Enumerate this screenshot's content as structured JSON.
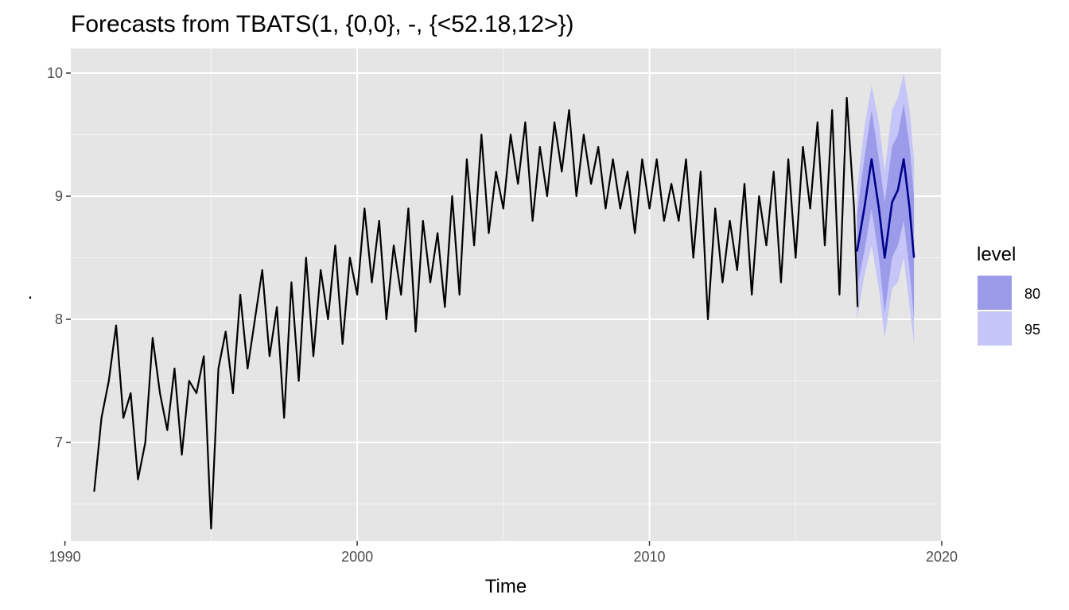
{
  "chart_data": {
    "type": "line",
    "title": "Forecasts from TBATS(1, {0,0}, -, {<52.18,12>})",
    "xlabel": "Time",
    "ylabel": ".",
    "xlim": [
      1990.2,
      2020.0
    ],
    "ylim": [
      6.2,
      10.2
    ],
    "x_ticks": [
      1990,
      2000,
      2010,
      2020
    ],
    "x_tick_labels": [
      "1990",
      "2000",
      "2010",
      "2020"
    ],
    "y_ticks": [
      7,
      8,
      9,
      10
    ],
    "y_tick_labels": [
      "7",
      "8",
      "9",
      "10"
    ],
    "grid": true,
    "background": "#e5e5e5",
    "legend": {
      "title": "level",
      "placement": "right",
      "entries": [
        {
          "label": "80",
          "color": "#9b9bea"
        },
        {
          "label": "95",
          "color": "#c5c5f7"
        }
      ]
    },
    "series": [
      {
        "kind": "observed",
        "color": "#000000",
        "x": [
          1991.0,
          1991.25,
          1991.5,
          1991.75,
          1992.0,
          1992.25,
          1992.5,
          1992.75,
          1993.0,
          1993.25,
          1993.5,
          1993.75,
          1994.0,
          1994.25,
          1994.5,
          1994.75,
          1995.0,
          1995.25,
          1995.5,
          1995.75,
          1996.0,
          1996.25,
          1996.5,
          1996.75,
          1997.0,
          1997.25,
          1997.5,
          1997.75,
          1998.0,
          1998.25,
          1998.5,
          1998.75,
          1999.0,
          1999.25,
          1999.5,
          1999.75,
          2000.0,
          2000.25,
          2000.5,
          2000.75,
          2001.0,
          2001.25,
          2001.5,
          2001.75,
          2002.0,
          2002.25,
          2002.5,
          2002.75,
          2003.0,
          2003.25,
          2003.5,
          2003.75,
          2004.0,
          2004.25,
          2004.5,
          2004.75,
          2005.0,
          2005.25,
          2005.5,
          2005.75,
          2006.0,
          2006.25,
          2006.5,
          2006.75,
          2007.0,
          2007.25,
          2007.5,
          2007.75,
          2008.0,
          2008.25,
          2008.5,
          2008.75,
          2009.0,
          2009.25,
          2009.5,
          2009.75,
          2010.0,
          2010.25,
          2010.5,
          2010.75,
          2011.0,
          2011.25,
          2011.5,
          2011.75,
          2012.0,
          2012.25,
          2012.5,
          2012.75,
          2013.0,
          2013.25,
          2013.5,
          2013.75,
          2014.0,
          2014.25,
          2014.5,
          2014.75,
          2015.0,
          2015.25,
          2015.5,
          2015.75,
          2016.0,
          2016.25,
          2016.5,
          2016.75,
          2017.0,
          2017.12
        ],
        "values": [
          6.6,
          7.2,
          7.5,
          7.95,
          7.2,
          7.4,
          6.7,
          7.0,
          7.85,
          7.4,
          7.1,
          7.6,
          6.9,
          7.5,
          7.4,
          7.7,
          6.3,
          7.6,
          7.9,
          7.4,
          8.2,
          7.6,
          8.0,
          8.4,
          7.7,
          8.1,
          7.2,
          8.3,
          7.5,
          8.5,
          7.7,
          8.4,
          8.0,
          8.6,
          7.8,
          8.5,
          8.2,
          8.9,
          8.3,
          8.8,
          8.0,
          8.6,
          8.2,
          8.9,
          7.9,
          8.8,
          8.3,
          8.7,
          8.1,
          9.0,
          8.2,
          9.3,
          8.6,
          9.5,
          8.7,
          9.2,
          8.9,
          9.5,
          9.1,
          9.6,
          8.8,
          9.4,
          9.0,
          9.6,
          9.2,
          9.7,
          9.0,
          9.5,
          9.1,
          9.4,
          8.9,
          9.3,
          8.9,
          9.2,
          8.7,
          9.3,
          8.9,
          9.3,
          8.8,
          9.1,
          8.8,
          9.3,
          8.5,
          9.2,
          8.0,
          8.9,
          8.3,
          8.8,
          8.4,
          9.1,
          8.2,
          9.0,
          8.6,
          9.2,
          8.3,
          9.3,
          8.5,
          9.4,
          8.9,
          9.6,
          8.6,
          9.7,
          8.2,
          9.8,
          8.9,
          8.1
        ]
      },
      {
        "kind": "forecast",
        "color": "#00008b",
        "x": [
          2017.1,
          2017.35,
          2017.6,
          2017.85,
          2018.05,
          2018.3,
          2018.5,
          2018.7,
          2018.9,
          2019.05
        ],
        "values": [
          8.55,
          8.9,
          9.3,
          8.9,
          8.5,
          8.95,
          9.05,
          9.3,
          8.9,
          8.5
        ],
        "lo80": [
          8.25,
          8.55,
          8.9,
          8.5,
          8.05,
          8.5,
          8.6,
          8.8,
          8.4,
          8.0
        ],
        "hi80": [
          8.85,
          9.3,
          9.7,
          9.3,
          8.95,
          9.4,
          9.5,
          9.75,
          9.4,
          9.0
        ],
        "lo95": [
          8.0,
          8.35,
          8.6,
          8.25,
          7.85,
          8.25,
          8.3,
          8.5,
          8.1,
          7.8
        ],
        "hi95": [
          9.05,
          9.55,
          9.9,
          9.6,
          9.2,
          9.7,
          9.8,
          10.0,
          9.7,
          9.3
        ]
      }
    ]
  }
}
